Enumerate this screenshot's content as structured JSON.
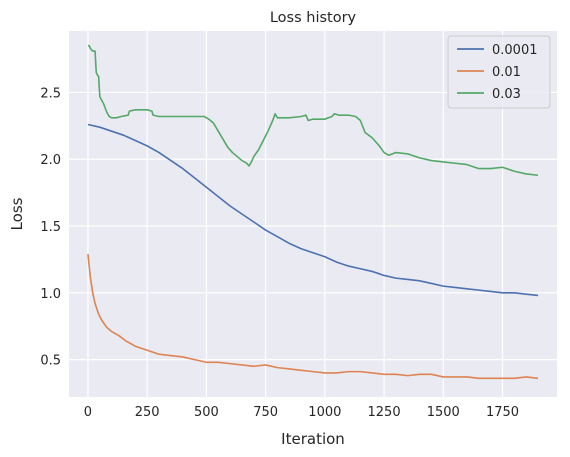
{
  "chart_data": {
    "type": "line",
    "title": "Loss history",
    "xlabel": "Iteration",
    "ylabel": "Loss",
    "xlim": [
      -80,
      1980
    ],
    "ylim": [
      0.22,
      2.96
    ],
    "x_ticks": [
      0,
      250,
      500,
      750,
      1000,
      1250,
      1500,
      1750
    ],
    "x_tick_labels": [
      "0",
      "250",
      "500",
      "750",
      "1000",
      "1250",
      "1500",
      "1750"
    ],
    "y_ticks": [
      0.5,
      1.0,
      1.5,
      2.0,
      2.5
    ],
    "y_tick_labels": [
      "0.5",
      "1.0",
      "1.5",
      "2.0",
      "2.5"
    ],
    "grid": true,
    "legend_position": "top-right",
    "background_color": "#eaeaf2",
    "grid_color": "#ffffff",
    "series": [
      {
        "name": "0.0001",
        "color": "#4c72b0",
        "points": [
          [
            0,
            2.26
          ],
          [
            50,
            2.24
          ],
          [
            100,
            2.21
          ],
          [
            150,
            2.18
          ],
          [
            200,
            2.14
          ],
          [
            250,
            2.1
          ],
          [
            300,
            2.05
          ],
          [
            350,
            1.99
          ],
          [
            400,
            1.93
          ],
          [
            450,
            1.86
          ],
          [
            500,
            1.79
          ],
          [
            550,
            1.72
          ],
          [
            600,
            1.65
          ],
          [
            650,
            1.59
          ],
          [
            700,
            1.53
          ],
          [
            750,
            1.47
          ],
          [
            800,
            1.42
          ],
          [
            850,
            1.37
          ],
          [
            900,
            1.33
          ],
          [
            950,
            1.3
          ],
          [
            1000,
            1.27
          ],
          [
            1050,
            1.23
          ],
          [
            1100,
            1.2
          ],
          [
            1150,
            1.18
          ],
          [
            1200,
            1.16
          ],
          [
            1250,
            1.13
          ],
          [
            1300,
            1.11
          ],
          [
            1350,
            1.1
          ],
          [
            1400,
            1.09
          ],
          [
            1450,
            1.07
          ],
          [
            1500,
            1.05
          ],
          [
            1550,
            1.04
          ],
          [
            1600,
            1.03
          ],
          [
            1650,
            1.02
          ],
          [
            1700,
            1.01
          ],
          [
            1750,
            1.0
          ],
          [
            1800,
            1.0
          ],
          [
            1850,
            0.99
          ],
          [
            1900,
            0.98
          ]
        ]
      },
      {
        "name": "0.01",
        "color": "#dd8452",
        "points": [
          [
            0,
            1.29
          ],
          [
            10,
            1.12
          ],
          [
            20,
            1.0
          ],
          [
            30,
            0.92
          ],
          [
            45,
            0.84
          ],
          [
            60,
            0.79
          ],
          [
            80,
            0.74
          ],
          [
            100,
            0.71
          ],
          [
            130,
            0.68
          ],
          [
            160,
            0.64
          ],
          [
            200,
            0.6
          ],
          [
            250,
            0.57
          ],
          [
            300,
            0.54
          ],
          [
            350,
            0.53
          ],
          [
            400,
            0.52
          ],
          [
            450,
            0.5
          ],
          [
            500,
            0.48
          ],
          [
            550,
            0.48
          ],
          [
            600,
            0.47
          ],
          [
            650,
            0.46
          ],
          [
            700,
            0.45
          ],
          [
            750,
            0.46
          ],
          [
            800,
            0.44
          ],
          [
            850,
            0.43
          ],
          [
            900,
            0.42
          ],
          [
            950,
            0.41
          ],
          [
            1000,
            0.4
          ],
          [
            1050,
            0.4
          ],
          [
            1100,
            0.41
          ],
          [
            1150,
            0.41
          ],
          [
            1200,
            0.4
          ],
          [
            1250,
            0.39
          ],
          [
            1300,
            0.39
          ],
          [
            1350,
            0.38
          ],
          [
            1400,
            0.39
          ],
          [
            1450,
            0.39
          ],
          [
            1500,
            0.37
          ],
          [
            1550,
            0.37
          ],
          [
            1600,
            0.37
          ],
          [
            1650,
            0.36
          ],
          [
            1700,
            0.36
          ],
          [
            1750,
            0.36
          ],
          [
            1800,
            0.36
          ],
          [
            1850,
            0.37
          ],
          [
            1900,
            0.36
          ]
        ]
      },
      {
        "name": "0.03",
        "color": "#55a868",
        "points": [
          [
            0,
            2.85
          ],
          [
            5,
            2.85
          ],
          [
            10,
            2.83
          ],
          [
            20,
            2.81
          ],
          [
            30,
            2.81
          ],
          [
            35,
            2.65
          ],
          [
            40,
            2.63
          ],
          [
            45,
            2.62
          ],
          [
            50,
            2.47
          ],
          [
            55,
            2.45
          ],
          [
            65,
            2.42
          ],
          [
            80,
            2.35
          ],
          [
            90,
            2.32
          ],
          [
            100,
            2.31
          ],
          [
            120,
            2.31
          ],
          [
            140,
            2.32
          ],
          [
            170,
            2.33
          ],
          [
            175,
            2.36
          ],
          [
            200,
            2.37
          ],
          [
            250,
            2.37
          ],
          [
            270,
            2.36
          ],
          [
            275,
            2.33
          ],
          [
            300,
            2.32
          ],
          [
            400,
            2.32
          ],
          [
            450,
            2.32
          ],
          [
            490,
            2.32
          ],
          [
            510,
            2.3
          ],
          [
            530,
            2.27
          ],
          [
            550,
            2.21
          ],
          [
            570,
            2.15
          ],
          [
            590,
            2.09
          ],
          [
            610,
            2.05
          ],
          [
            630,
            2.02
          ],
          [
            650,
            1.99
          ],
          [
            670,
            1.97
          ],
          [
            680,
            1.95
          ],
          [
            690,
            1.98
          ],
          [
            700,
            2.02
          ],
          [
            720,
            2.07
          ],
          [
            740,
            2.14
          ],
          [
            760,
            2.21
          ],
          [
            780,
            2.29
          ],
          [
            790,
            2.34
          ],
          [
            800,
            2.31
          ],
          [
            850,
            2.31
          ],
          [
            900,
            2.32
          ],
          [
            920,
            2.33
          ],
          [
            930,
            2.29
          ],
          [
            950,
            2.3
          ],
          [
            1000,
            2.3
          ],
          [
            1030,
            2.32
          ],
          [
            1040,
            2.34
          ],
          [
            1060,
            2.33
          ],
          [
            1100,
            2.33
          ],
          [
            1130,
            2.32
          ],
          [
            1150,
            2.29
          ],
          [
            1170,
            2.2
          ],
          [
            1200,
            2.16
          ],
          [
            1230,
            2.1
          ],
          [
            1250,
            2.05
          ],
          [
            1270,
            2.03
          ],
          [
            1300,
            2.05
          ],
          [
            1350,
            2.04
          ],
          [
            1400,
            2.01
          ],
          [
            1450,
            1.99
          ],
          [
            1500,
            1.98
          ],
          [
            1550,
            1.97
          ],
          [
            1600,
            1.96
          ],
          [
            1650,
            1.93
          ],
          [
            1700,
            1.93
          ],
          [
            1750,
            1.94
          ],
          [
            1800,
            1.91
          ],
          [
            1850,
            1.89
          ],
          [
            1900,
            1.88
          ]
        ]
      }
    ]
  }
}
